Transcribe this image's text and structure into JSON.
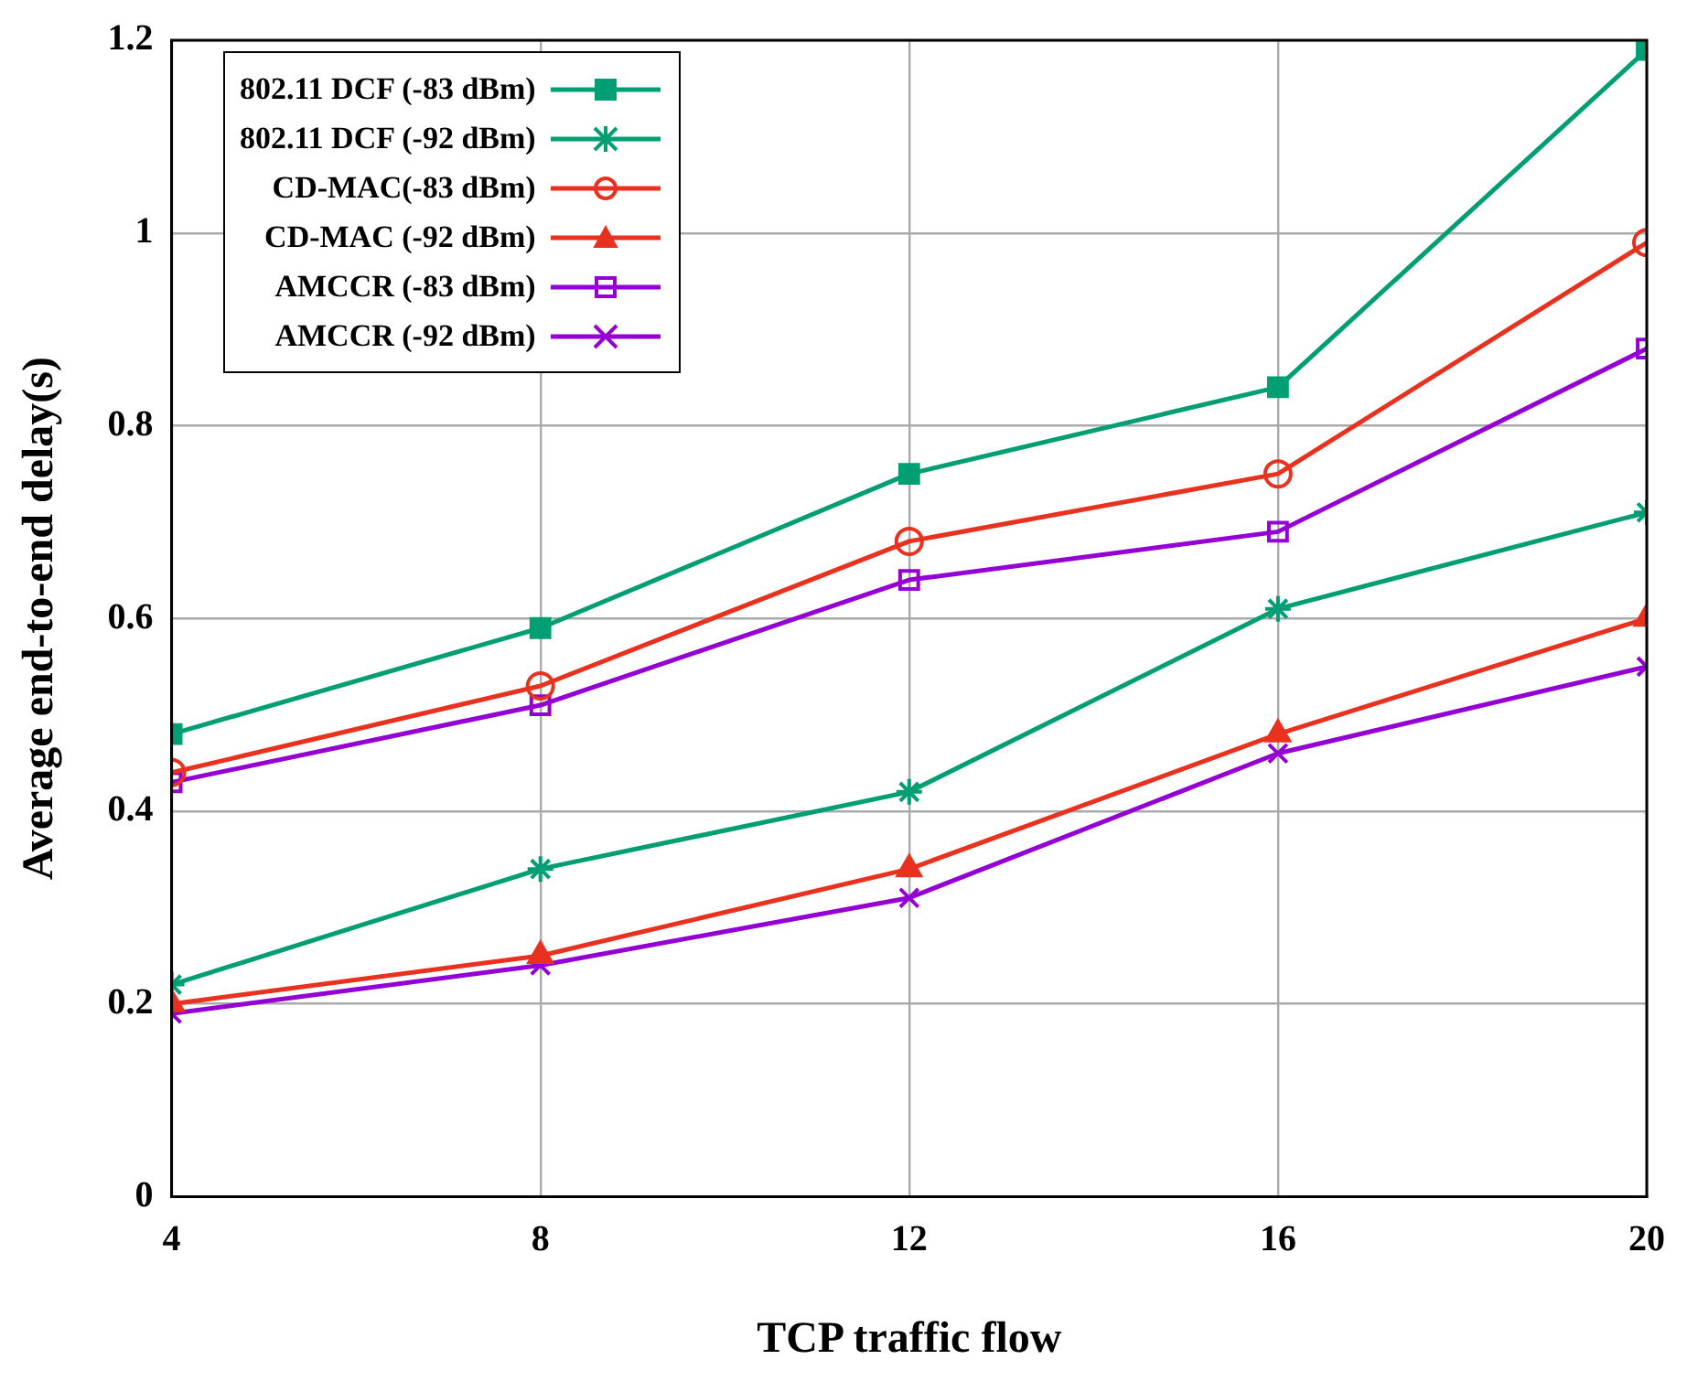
{
  "chart_data": {
    "type": "line",
    "xlabel": "TCP traffic flow",
    "ylabel": "Average end-to-end delay(s)",
    "x": [
      4,
      8,
      12,
      16,
      20
    ],
    "xlim": [
      4,
      20
    ],
    "xticks": [
      4,
      8,
      12,
      16,
      20
    ],
    "ylim": [
      0,
      1.2
    ],
    "yticks": [
      0,
      0.2,
      0.4,
      0.6,
      0.8,
      1,
      1.2
    ],
    "grid": true,
    "legend": "top left",
    "line_style": "solid",
    "series": [
      {
        "name": "802.11 DCF (-83 dBm)",
        "color": "#009e73",
        "marker": "square",
        "values": [
          0.48,
          0.59,
          0.75,
          0.84,
          1.19
        ]
      },
      {
        "name": "802.11 DCF (-92 dBm)",
        "color": "#009e73",
        "marker": "cross",
        "values": [
          0.22,
          0.34,
          0.42,
          0.61,
          0.71
        ]
      },
      {
        "name": "CD-MAC(-83 dBm)",
        "color": "#e8311f",
        "marker": "circle",
        "values": [
          0.44,
          0.53,
          0.68,
          0.75,
          0.99
        ]
      },
      {
        "name": "CD-MAC (-92 dBm)",
        "color": "#e8311f",
        "marker": "triangle",
        "values": [
          0.2,
          0.25,
          0.34,
          0.48,
          0.6
        ]
      },
      {
        "name": "AMCCR (-83 dBm)",
        "color": "#9400d3",
        "marker": "square",
        "values": [
          0.43,
          0.51,
          0.64,
          0.69,
          0.88
        ]
      },
      {
        "name": "AMCCR (-92 dBm)",
        "color": "#9400d3",
        "marker": "cross",
        "values": [
          0.19,
          0.24,
          0.31,
          0.46,
          0.55
        ]
      }
    ]
  }
}
